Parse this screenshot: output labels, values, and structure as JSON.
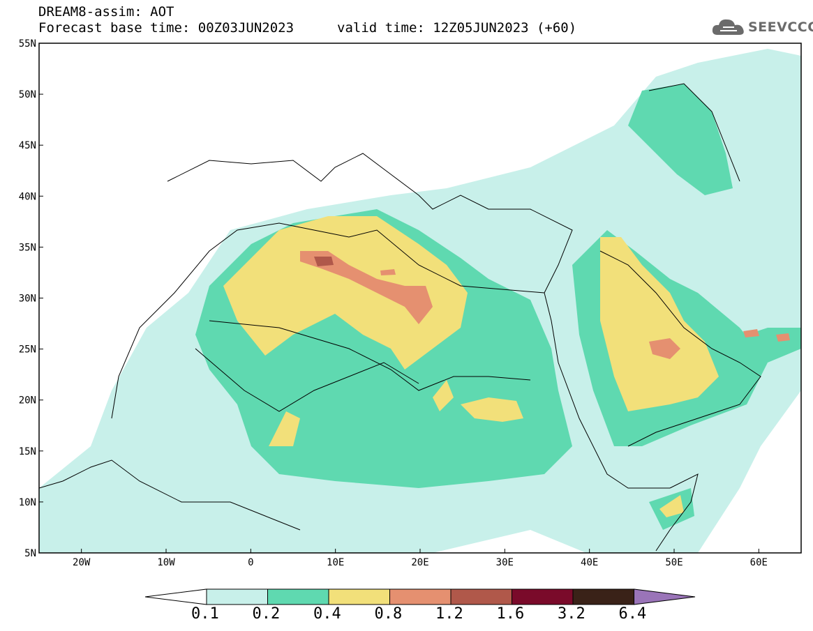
{
  "header": {
    "line1": "DREAM8-assim: AOT",
    "line2_left": "Forecast base time: 00Z03JUN2023",
    "line2_right": "valid time: 12Z05JUN2023 (+60)"
  },
  "logo": {
    "text": "SEEVCCC",
    "icon": "cloud-icon"
  },
  "map": {
    "lat_labels": [
      "55N",
      "50N",
      "45N",
      "40N",
      "35N",
      "30N",
      "25N",
      "20N",
      "15N",
      "10N",
      "5N"
    ],
    "lon_labels": [
      "20W",
      "10W",
      "0",
      "10E",
      "20E",
      "30E",
      "40E",
      "50E",
      "60E"
    ],
    "lat_range": [
      5,
      55
    ],
    "lon_range": [
      -25,
      65
    ]
  },
  "colorbar": {
    "labels": [
      "0.1",
      "0.2",
      "0.4",
      "0.8",
      "1.2",
      "1.6",
      "3.2",
      "6.4"
    ],
    "colors": [
      "#c8f0ea",
      "#5fd9b0",
      "#f2e07a",
      "#e59070",
      "#b0584a",
      "#7a0a2a",
      "#3a2218",
      "#9a74b8"
    ]
  }
}
